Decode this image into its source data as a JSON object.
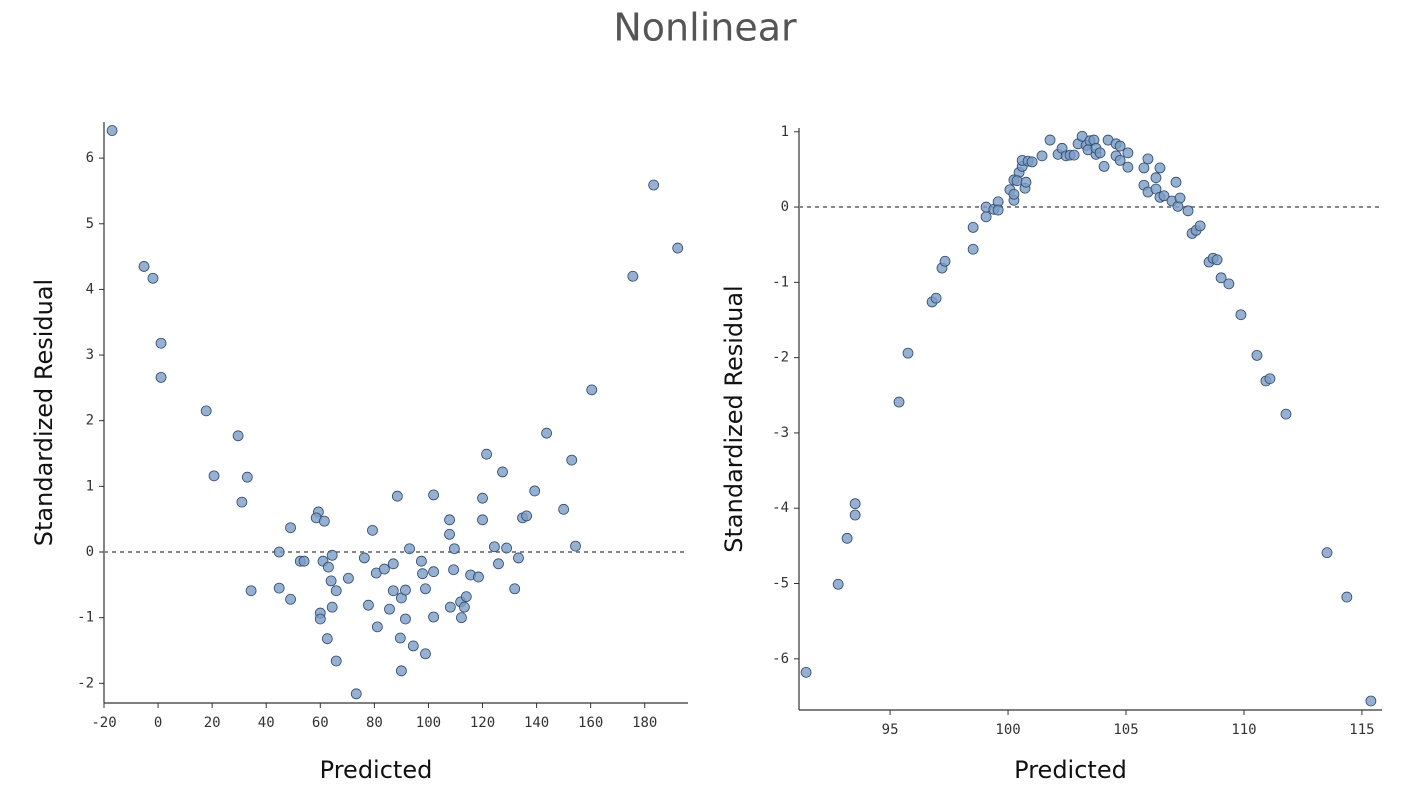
{
  "title": "Nonlinear",
  "chart_data": [
    {
      "type": "scatter",
      "xlabel": "Predicted",
      "ylabel": "Standardized Residual",
      "xlim": [
        -20,
        196
      ],
      "ylim": [
        -2.3,
        6.55
      ],
      "xticks": [
        -20,
        0,
        20,
        40,
        60,
        80,
        100,
        120,
        140,
        160,
        180
      ],
      "yticks": [
        -2,
        -1,
        0,
        1,
        2,
        3,
        4,
        5,
        6
      ],
      "hline": 0,
      "color": "#7b9cc4",
      "x": [
        -17,
        -5.2,
        -1.9,
        1.1,
        1.1,
        17.8,
        20.7,
        29.6,
        33,
        31,
        34.4,
        44.8,
        44.8,
        49,
        49,
        52.6,
        54,
        59.3,
        58.5,
        61.5,
        60,
        60,
        61,
        63,
        64.4,
        64,
        65.9,
        64.4,
        62.6,
        65.9,
        70.4,
        73.3,
        76.3,
        77.8,
        79.3,
        80.7,
        81.1,
        83.7,
        85.6,
        87,
        87,
        88.5,
        90,
        91.5,
        89.6,
        90,
        91.5,
        93,
        94.4,
        97.4,
        97.8,
        98.9,
        98.9,
        101.9,
        101.9,
        101.9,
        107.8,
        107.8,
        109.6,
        109.3,
        108.1,
        111.9,
        112.2,
        113.3,
        114,
        115.6,
        118.5,
        120,
        120,
        121.5,
        124.4,
        125.9,
        127.4,
        128.9,
        131.9,
        133.3,
        134.8,
        136.3,
        139.3,
        143.7,
        150,
        153,
        154.4,
        160.4,
        175.6,
        183.3,
        192.2
      ],
      "values": [
        6.42,
        4.35,
        4.17,
        3.18,
        2.66,
        2.15,
        1.16,
        1.77,
        1.14,
        0.76,
        -0.59,
        0,
        -0.55,
        0.37,
        -0.72,
        -0.14,
        -0.14,
        0.61,
        0.52,
        0.47,
        -0.93,
        -1.02,
        -0.14,
        -0.23,
        -0.05,
        -0.44,
        -0.59,
        -0.84,
        -1.32,
        -1.66,
        -0.4,
        -2.16,
        -0.09,
        -0.81,
        0.33,
        -0.32,
        -1.14,
        -0.26,
        -0.87,
        -0.18,
        -0.59,
        0.85,
        -0.7,
        -0.58,
        -1.31,
        -1.81,
        -1.02,
        0.05,
        -1.43,
        -0.14,
        -0.33,
        -0.56,
        -1.55,
        0.87,
        -0.3,
        -0.99,
        0.49,
        0.27,
        0.05,
        -0.27,
        -0.84,
        -0.76,
        -1.0,
        -0.84,
        -0.68,
        -0.35,
        -0.38,
        0.82,
        0.49,
        1.49,
        0.08,
        -0.18,
        1.22,
        0.06,
        -0.56,
        -0.09,
        0.52,
        0.55,
        0.93,
        1.81,
        0.65,
        1.4,
        0.09,
        2.47,
        4.2,
        5.59,
        4.63
      ]
    },
    {
      "type": "scatter",
      "xlabel": "Predicted",
      "ylabel": "Standardized Residual",
      "xlim": [
        91.14,
        115.85
      ],
      "ylim": [
        -6.68,
        1.05
      ],
      "xticks": [
        95,
        100,
        105,
        110,
        115
      ],
      "yticks": [
        -6,
        -5,
        -4,
        -3,
        -2,
        -1,
        0,
        1
      ],
      "hline": 0,
      "color": "#7b9cc4",
      "x": [
        91.44,
        92.8,
        93.18,
        93.52,
        93.52,
        95.38,
        95.76,
        96.78,
        96.95,
        97.2,
        97.33,
        98.52,
        98.52,
        99.07,
        99.07,
        99.4,
        99.58,
        99.58,
        100.08,
        100.25,
        100.25,
        100.25,
        100.47,
        100.38,
        100.6,
        100.6,
        100.72,
        100.76,
        100.85,
        101.02,
        101.44,
        101.78,
        102.12,
        102.29,
        102.46,
        102.63,
        102.8,
        102.97,
        103.14,
        103.31,
        103.47,
        103.39,
        103.64,
        103.73,
        103.73,
        103.9,
        104.07,
        104.24,
        104.58,
        104.58,
        104.75,
        104.75,
        105.08,
        105.08,
        105.76,
        105.76,
        105.93,
        105.93,
        106.27,
        106.27,
        106.44,
        106.44,
        106.61,
        106.95,
        107.12,
        107.2,
        107.29,
        107.63,
        107.8,
        107.97,
        108.14,
        108.52,
        108.69,
        108.86,
        109.03,
        109.36,
        109.87,
        110.55,
        110.93,
        111.1,
        111.78,
        113.52,
        114.36,
        115.38
      ],
      "values": [
        -6.18,
        -5.01,
        -4.4,
        -4.09,
        -3.94,
        -2.59,
        -1.94,
        -1.26,
        -1.21,
        -0.81,
        -0.72,
        -0.56,
        -0.27,
        -0.13,
        0,
        -0.03,
        0.07,
        -0.04,
        0.23,
        0.09,
        0.17,
        0.36,
        0.46,
        0.35,
        0.54,
        0.62,
        0.25,
        0.33,
        0.61,
        0.6,
        0.68,
        0.89,
        0.7,
        0.78,
        0.68,
        0.69,
        0.69,
        0.84,
        0.94,
        0.82,
        0.88,
        0.76,
        0.89,
        0.7,
        0.78,
        0.72,
        0.54,
        0.89,
        0.84,
        0.68,
        0.81,
        0.62,
        0.72,
        0.53,
        0.52,
        0.29,
        0.64,
        0.2,
        0.39,
        0.24,
        0.52,
        0.13,
        0.15,
        0.08,
        0.33,
        0.01,
        0.12,
        -0.05,
        -0.35,
        -0.31,
        -0.25,
        -0.73,
        -0.68,
        -0.7,
        -0.94,
        -1.02,
        -1.43,
        -1.97,
        -2.31,
        -2.28,
        -2.75,
        -4.59,
        -5.18,
        -6.56
      ]
    }
  ]
}
